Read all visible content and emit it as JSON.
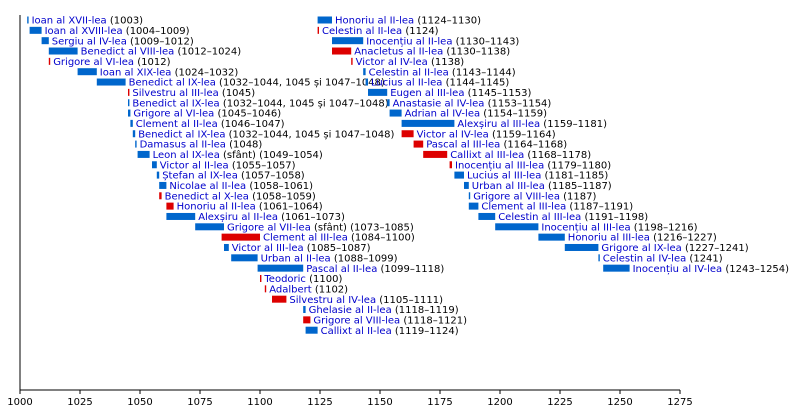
{
  "chart_data": {
    "type": "timeline",
    "title": "",
    "xlabel": "",
    "ylabel": "",
    "xlim": [
      1000,
      1275
    ],
    "x_ticks": [
      1000,
      1025,
      1050,
      1075,
      1100,
      1125,
      1150,
      1175,
      1200,
      1225,
      1250,
      1275
    ],
    "colors": {
      "pope": "#0066cc",
      "antipope": "#dd0000",
      "label": "#0000cc",
      "axis": "#000000"
    },
    "columns": [
      [
        {
          "name": "Ioan al XVII-lea",
          "years": "(1003)",
          "start": 1003,
          "end": 1003.4,
          "antipope": false
        },
        {
          "name": "Ioan al XVIII-lea",
          "years": "(1004–1009)",
          "start": 1004,
          "end": 1009,
          "antipope": false
        },
        {
          "name": "Sergiu al IV-lea",
          "years": "(1009–1012)",
          "start": 1009,
          "end": 1012,
          "antipope": false
        },
        {
          "name": "Benedict al VIII-lea",
          "years": "(1012–1024)",
          "start": 1012,
          "end": 1024,
          "antipope": false
        },
        {
          "name": "Grigore al VI-lea",
          "years": "(1012)",
          "start": 1012,
          "end": 1012.4,
          "antipope": true
        },
        {
          "name": "Ioan al XIX-lea",
          "years": "(1024–1032)",
          "start": 1024,
          "end": 1032,
          "antipope": false
        },
        {
          "name": "Benedict al IX-lea",
          "years": "(1032–1044, 1045 și 1047–1048)",
          "start": 1032,
          "end": 1044,
          "antipope": false
        },
        {
          "name": "Silvestru al III-lea",
          "years": "(1045)",
          "start": 1045,
          "end": 1045.4,
          "antipope": true
        },
        {
          "name": "Benedict al IX-lea",
          "years": "(1032–1044, 1045 și 1047–1048)",
          "start": 1045,
          "end": 1045.4,
          "antipope": false
        },
        {
          "name": "Grigore al VI-lea",
          "years": "(1045–1046)",
          "start": 1045,
          "end": 1046,
          "antipope": false
        },
        {
          "name": "Clement al II-lea",
          "years": "(1046–1047)",
          "start": 1046,
          "end": 1047,
          "antipope": false
        },
        {
          "name": "Benedict al IX-lea",
          "years": "(1032–1044, 1045 și 1047–1048)",
          "start": 1047,
          "end": 1048,
          "antipope": false
        },
        {
          "name": "Damasus al II-lea",
          "years": "(1048)",
          "start": 1048,
          "end": 1048.4,
          "antipope": false
        },
        {
          "name": "Leon al IX-lea",
          "years": "(sfânt) (1049–1054)",
          "start": 1049,
          "end": 1054,
          "antipope": false
        },
        {
          "name": "Victor al II-lea",
          "years": "(1055–1057)",
          "start": 1055,
          "end": 1057,
          "antipope": false
        },
        {
          "name": "Ștefan al IX-lea",
          "years": "(1057–1058)",
          "start": 1057,
          "end": 1058,
          "antipope": false
        },
        {
          "name": "Nicolae al II-lea",
          "years": "(1058–1061)",
          "start": 1058,
          "end": 1061,
          "antipope": false
        },
        {
          "name": "Benedict al X-lea",
          "years": "(1058–1059)",
          "start": 1058,
          "end": 1059,
          "antipope": true
        },
        {
          "name": "Honoriu al II-lea",
          "years": "(1061–1064)",
          "start": 1061,
          "end": 1064,
          "antipope": true
        },
        {
          "name": "Alexșiru al II-lea",
          "years": "(1061–1073)",
          "start": 1061,
          "end": 1073,
          "antipope": false
        },
        {
          "name": "Grigore al VII-lea",
          "years": "(sfânt) (1073–1085)",
          "start": 1073,
          "end": 1085,
          "antipope": false
        },
        {
          "name": "Clement al III-lea",
          "years": "(1084–1100)",
          "start": 1084,
          "end": 1100,
          "antipope": true
        },
        {
          "name": "Victor al III-lea",
          "years": "(1085–1087)",
          "start": 1085,
          "end": 1087,
          "antipope": false
        },
        {
          "name": "Urban al II-lea",
          "years": "(1088–1099)",
          "start": 1088,
          "end": 1099,
          "antipope": false
        },
        {
          "name": "Pascal al II-lea",
          "years": "(1099–1118)",
          "start": 1099,
          "end": 1118,
          "antipope": false
        },
        {
          "name": "Teodoric",
          "years": "(1100)",
          "start": 1100,
          "end": 1100.4,
          "antipope": true
        },
        {
          "name": "Adalbert",
          "years": "(1102)",
          "start": 1102,
          "end": 1102.4,
          "antipope": true
        },
        {
          "name": "Silvestru al IV-lea",
          "years": "(1105–1111)",
          "start": 1105,
          "end": 1111,
          "antipope": true
        },
        {
          "name": "Ghelasie al II-lea",
          "years": "(1118–1119)",
          "start": 1118,
          "end": 1119,
          "antipope": false
        },
        {
          "name": "Grigore al VIII-lea",
          "years": "(1118–1121)",
          "start": 1118,
          "end": 1121,
          "antipope": true
        },
        {
          "name": "Callixt al II-lea",
          "years": "(1119–1124)",
          "start": 1119,
          "end": 1124,
          "antipope": false
        }
      ],
      [
        {
          "name": "Honoriu al II-lea",
          "years": "(1124–1130)",
          "start": 1124,
          "end": 1130,
          "antipope": false
        },
        {
          "name": "Celestin al II-lea",
          "years": "(1124)",
          "start": 1124,
          "end": 1124.4,
          "antipope": true
        },
        {
          "name": "Inocențiu al II-lea",
          "years": "(1130–1143)",
          "start": 1130,
          "end": 1143,
          "antipope": false
        },
        {
          "name": "Anacletus al II-lea",
          "years": "(1130–1138)",
          "start": 1130,
          "end": 1138,
          "antipope": true
        },
        {
          "name": "Victor al IV-lea",
          "years": "(1138)",
          "start": 1138,
          "end": 1138.4,
          "antipope": true
        },
        {
          "name": "Celestin al II-lea",
          "years": "(1143–1144)",
          "start": 1143,
          "end": 1144,
          "antipope": false
        },
        {
          "name": "Lucius al II-lea",
          "years": "(1144–1145)",
          "start": 1144,
          "end": 1145,
          "antipope": false
        },
        {
          "name": "Eugen al III-lea",
          "years": "(1145–1153)",
          "start": 1145,
          "end": 1153,
          "antipope": false
        },
        {
          "name": "Anastasie al IV-lea",
          "years": "(1153–1154)",
          "start": 1153,
          "end": 1154,
          "antipope": false
        },
        {
          "name": "Adrian al IV-lea",
          "years": "(1154–1159)",
          "start": 1154,
          "end": 1159,
          "antipope": false
        },
        {
          "name": "Alexșiru al III-lea",
          "years": "(1159–1181)",
          "start": 1159,
          "end": 1181,
          "antipope": false
        },
        {
          "name": "Victor al IV-lea",
          "years": "(1159–1164)",
          "start": 1159,
          "end": 1164,
          "antipope": true
        },
        {
          "name": "Pascal al III-lea",
          "years": "(1164–1168)",
          "start": 1164,
          "end": 1168,
          "antipope": true
        },
        {
          "name": "Callixt al III-lea",
          "years": "(1168–1178)",
          "start": 1168,
          "end": 1178,
          "antipope": true
        },
        {
          "name": "Inocențiu al III-lea",
          "years": "(1179–1180)",
          "start": 1179,
          "end": 1180,
          "antipope": true
        },
        {
          "name": "Lucius al III-lea",
          "years": "(1181–1185)",
          "start": 1181,
          "end": 1185,
          "antipope": false
        },
        {
          "name": "Urban al III-lea",
          "years": "(1185–1187)",
          "start": 1185,
          "end": 1187,
          "antipope": false
        },
        {
          "name": "Grigore al VIII-lea",
          "years": "(1187)",
          "start": 1187,
          "end": 1187.4,
          "antipope": false
        },
        {
          "name": "Clement al III-lea",
          "years": "(1187–1191)",
          "start": 1187,
          "end": 1191,
          "antipope": false
        },
        {
          "name": "Celestin al III-lea",
          "years": "(1191–1198)",
          "start": 1191,
          "end": 1198,
          "antipope": false
        },
        {
          "name": "Inocențiu al III-lea",
          "years": "(1198–1216)",
          "start": 1198,
          "end": 1216,
          "antipope": false
        },
        {
          "name": "Honoriu al III-lea",
          "years": "(1216–1227)",
          "start": 1216,
          "end": 1227,
          "antipope": false
        },
        {
          "name": "Grigore al IX-lea",
          "years": "(1227–1241)",
          "start": 1227,
          "end": 1241,
          "antipope": false
        },
        {
          "name": "Celestin al IV-lea",
          "years": "(1241)",
          "start": 1241,
          "end": 1241.4,
          "antipope": false
        },
        {
          "name": "Inocențiu al IV-lea",
          "years": "(1243–1254)",
          "start": 1243,
          "end": 1254,
          "antipope": false
        }
      ]
    ]
  }
}
